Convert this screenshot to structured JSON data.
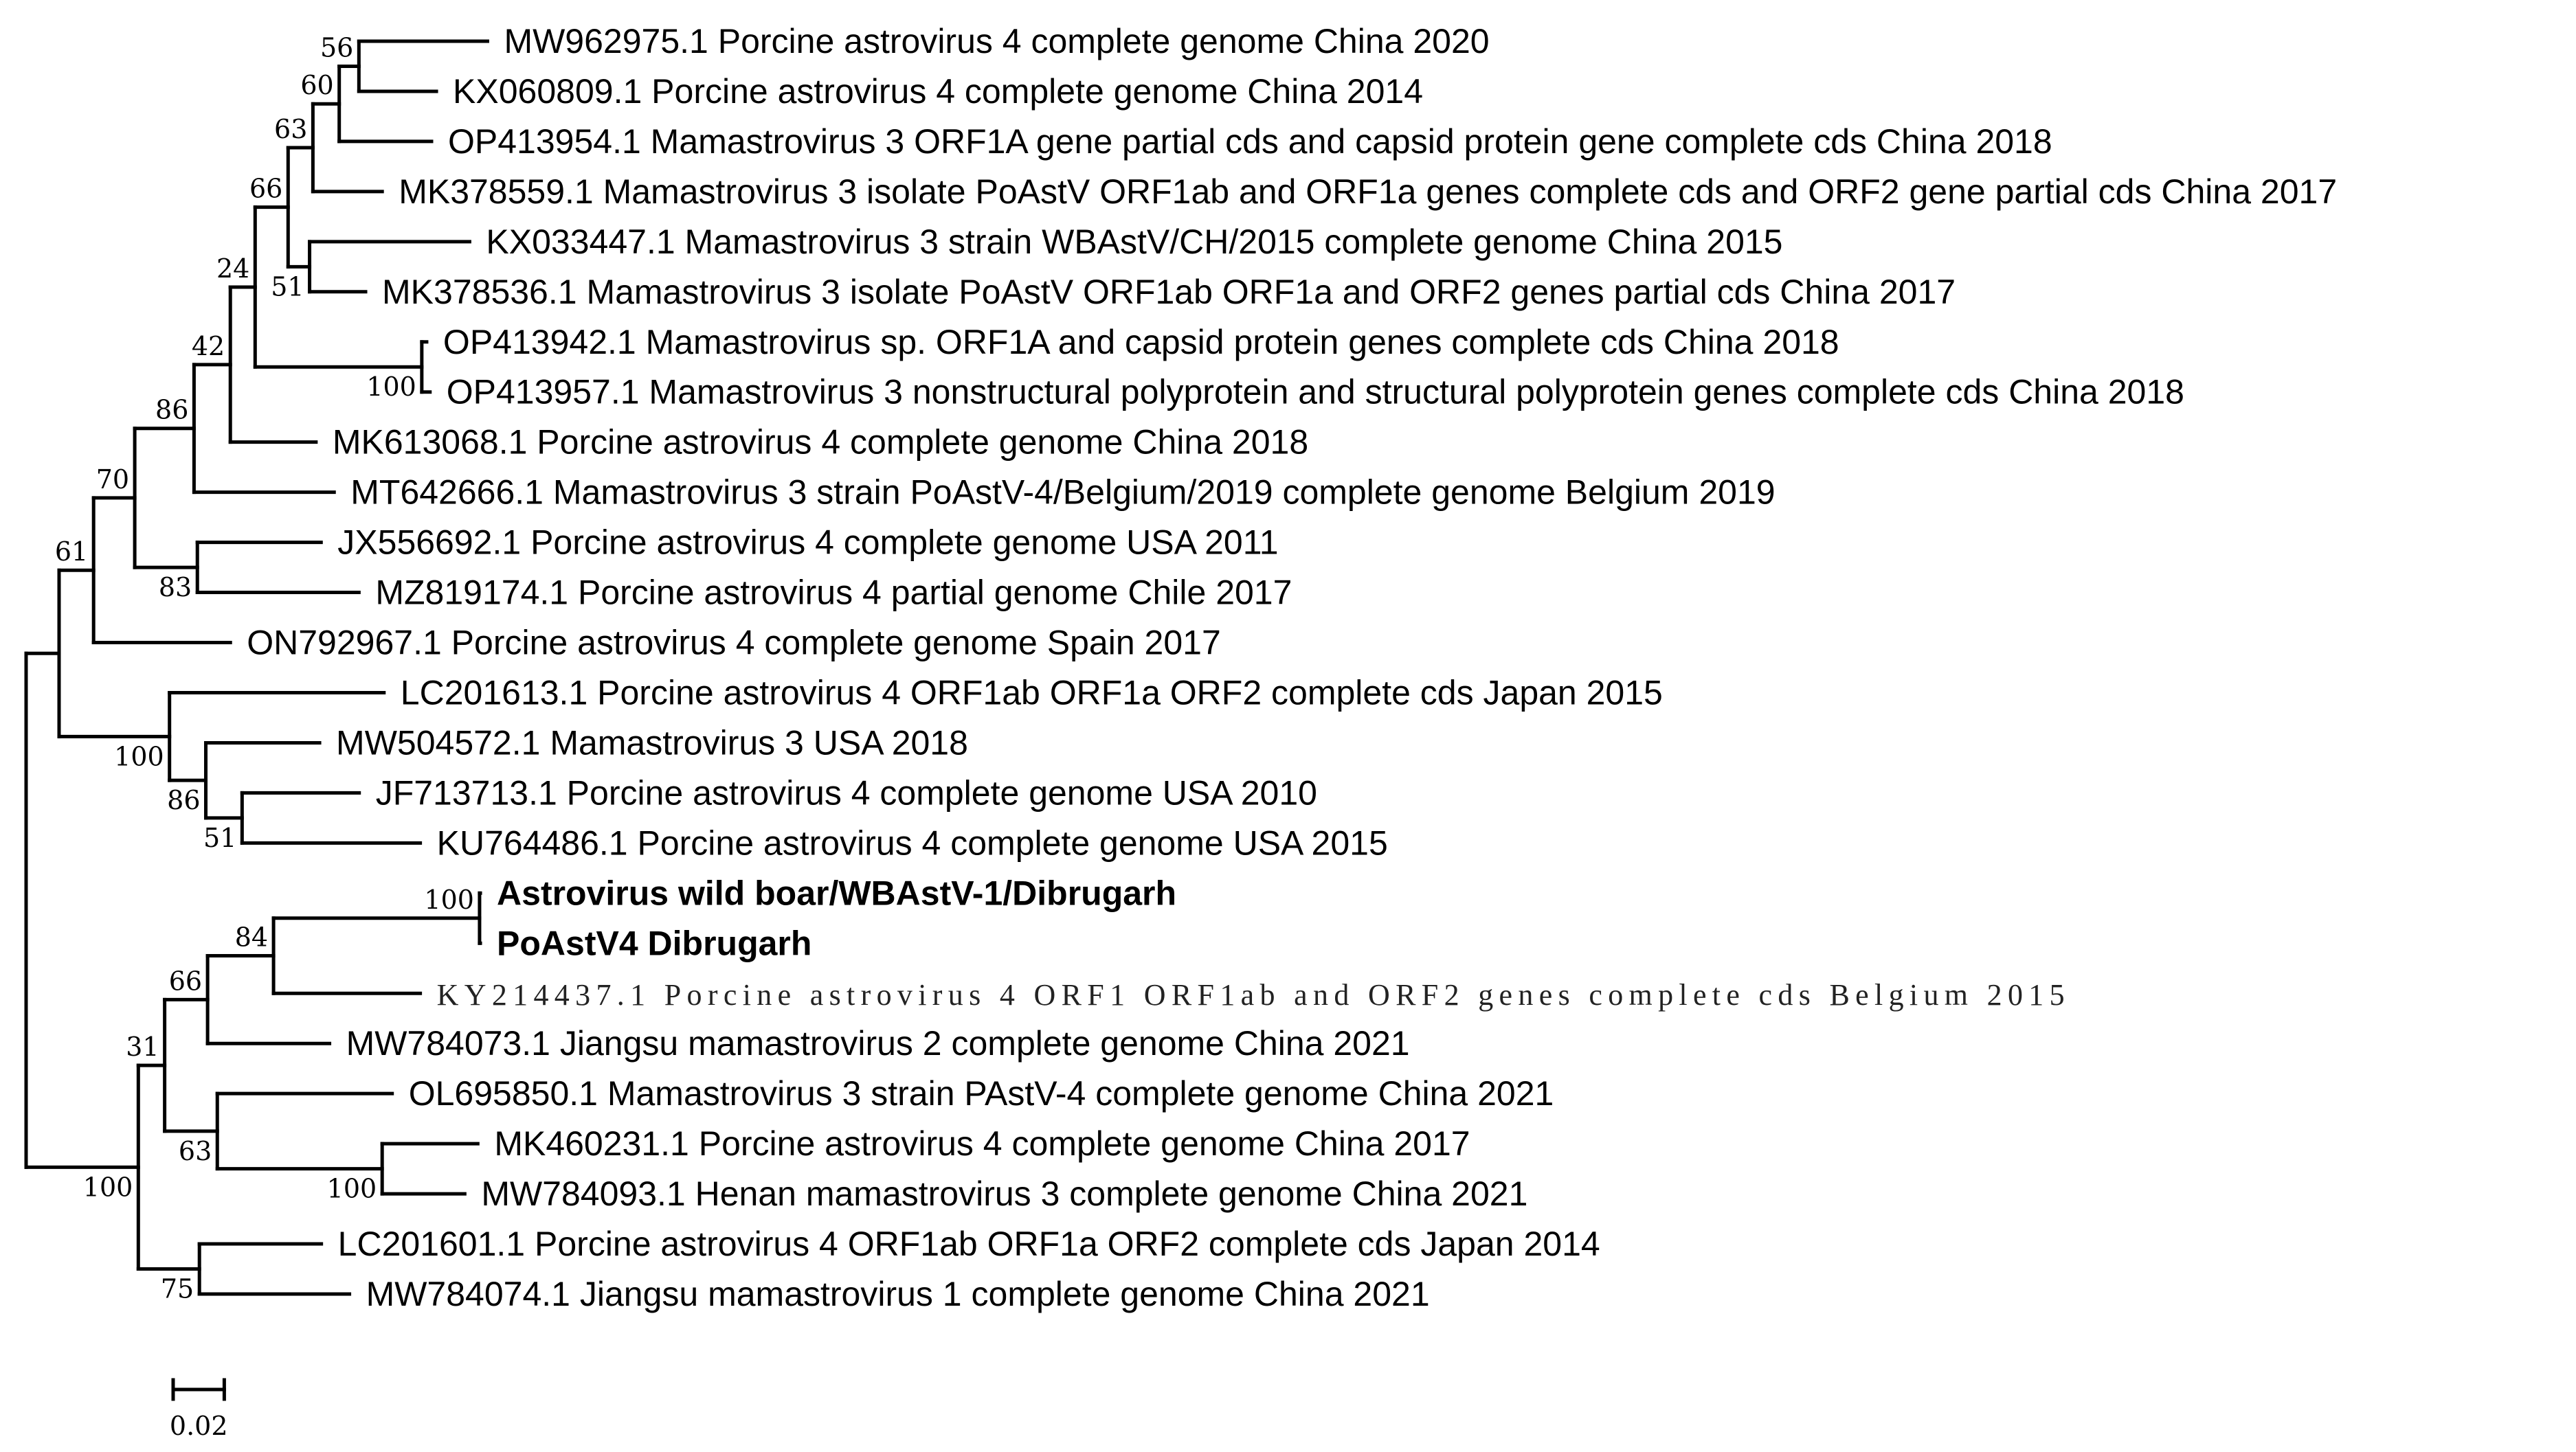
{
  "tree": {
    "id": "root",
    "bl": 0,
    "children": [
      {
        "id": "nUpper",
        "bl": 0.0129,
        "children": [
          {
            "id": "n61",
            "bl": 0.0135,
            "support": "61",
            "children": [
              {
                "id": "n70",
                "bl": 0.0161,
                "support": "70",
                "children": [
                  {
                    "id": "n86",
                    "bl": 0.0232,
                    "support": "86",
                    "children": [
                      {
                        "id": "n42",
                        "bl": 0.0142,
                        "support": "42",
                        "children": [
                          {
                            "id": "n24",
                            "bl": 0.0097,
                            "support": "24",
                            "children": [
                              {
                                "id": "n66",
                                "bl": 0.0129,
                                "support": "66",
                                "children": [
                                  {
                                    "id": "n63",
                                    "bl": 0.0097,
                                    "support": "63",
                                    "children": [
                                      {
                                        "id": "n60",
                                        "bl": 0.0103,
                                        "support": "60",
                                        "children": [
                                          {
                                            "id": "n56",
                                            "bl": 0.0077,
                                            "support": "56",
                                            "children": [
                                              {
                                                "label": "MW962975.1 Porcine astrovirus 4 complete genome China 2020",
                                                "bl": 0.0503
                                              },
                                              {
                                                "label": "KX060809.1 Porcine astrovirus 4 complete genome China 2014",
                                                "bl": 0.0303
                                              }
                                            ]
                                          },
                                          {
                                            "label": "OP413954.1 Mamastrovirus 3 ORF1A gene partial cds and capsid protein gene complete cds China 2018",
                                            "bl": 0.0361
                                          }
                                        ]
                                      },
                                      {
                                        "label": "MK378559.1 Mamastrovirus 3 isolate PoAstV ORF1ab and ORF1a genes complete cds and ORF2 gene partial cds China 2017",
                                        "bl": 0.0271
                                      }
                                    ]
                                  },
                                  {
                                    "id": "nKX",
                                    "bl": 0.0084,
                                    "support": "51",
                                    "children": [
                                      {
                                        "label": "KX033447.1 Mamastrovirus 3 strain WBAstV/CH/2015 complete genome China 2015",
                                        "bl": 0.0626
                                      },
                                      {
                                        "label": "MK378536.1 Mamastrovirus 3 isolate PoAstV ORF1ab ORF1a and ORF2 genes partial cds China 2017",
                                        "bl": 0.0219
                                      }
                                    ]
                                  }
                                ]
                              },
                              {
                                "id": "nOP",
                                "bl": 0.0652,
                                "support": "100",
                                "children": [
                                  {
                                    "label": "OP413942.1 Mamastrovirus sp. ORF1A and capsid protein genes complete cds China 2018",
                                    "bl": 0.0019
                                  },
                                  {
                                    "label": "OP413957.1 Mamastrovirus 3 nonstructural polyprotein and structural polyprotein genes complete cds China 2018",
                                    "bl": 0.0032
                                  }
                                ]
                              }
                            ]
                          },
                          {
                            "label": "MK613068.1 Porcine astrovirus 4 complete genome China 2018",
                            "bl": 0.0335
                          }
                        ]
                      },
                      {
                        "label": "MT642666.1 Mamastrovirus 3 strain PoAstV-4/Belgium/2019 complete genome Belgium 2019",
                        "bl": 0.0548
                      }
                    ]
                  },
                  {
                    "id": "nJX",
                    "bl": 0.0245,
                    "support": "83",
                    "children": [
                      {
                        "label": "JX556692.1 Porcine astrovirus 4 complete genome USA 2011",
                        "bl": 0.0484
                      },
                      {
                        "label": "MZ819174.1 Porcine astrovirus 4 partial genome Chile 2017",
                        "bl": 0.0632
                      }
                    ]
                  }
                ]
              },
              {
                "label": "ON792967.1 Porcine astrovirus 4 complete genome Spain 2017",
                "bl": 0.0535
              }
            ]
          },
          {
            "id": "n100a",
            "bl": 0.0432,
            "support": "100",
            "children": [
              {
                "label": "LC201613.1 Porcine astrovirus 4 ORF1ab ORF1a ORF2 complete cds Japan 2015",
                "bl": 0.0839
              },
              {
                "id": "n86b",
                "bl": 0.0142,
                "support": "86",
                "children": [
                  {
                    "label": "MW504572.1 Mamastrovirus 3 USA 2018",
                    "bl": 0.0445
                  },
                  {
                    "id": "n51b",
                    "bl": 0.0142,
                    "support": "51",
                    "children": [
                      {
                        "label": "JF713713.1 Porcine astrovirus 4 complete genome USA 2010",
                        "bl": 0.0458
                      },
                      {
                        "label": "KU764486.1 Porcine astrovirus 4 complete genome USA 2015",
                        "bl": 0.0697
                      }
                    ]
                  }
                ]
              }
            ]
          }
        ]
      },
      {
        "id": "n100b",
        "bl": 0.0439,
        "support": "100",
        "children": [
          {
            "id": "n31",
            "bl": 0.0103,
            "support": "31",
            "children": [
              {
                "id": "n66b",
                "bl": 0.0168,
                "support": "66",
                "children": [
                  {
                    "id": "n84",
                    "bl": 0.0258,
                    "support": "84",
                    "children": [
                      {
                        "id": "n100c",
                        "bl": 0.0806,
                        "support": "100",
                        "children": [
                          {
                            "label": "Astrovirus wild boar/WBAstV-1/Dibrugarh",
                            "bl": 0.0003,
                            "emphasis": "bold"
                          },
                          {
                            "label": "PoAstV4 Dibrugarh",
                            "bl": 0.0003,
                            "emphasis": "bold"
                          }
                        ]
                      },
                      {
                        "label": "KY214437.1 Porcine astrovirus 4 ORF1 ORF1ab and ORF2 genes complete cds Belgium 2015",
                        "bl": 0.0574,
                        "emphasis": "alternate"
                      }
                    ]
                  },
                  {
                    "label": "MW784073.1 Jiangsu mamastrovirus 2 complete genome China 2021",
                    "bl": 0.0477
                  }
                ]
              },
              {
                "id": "n63b",
                "bl": 0.0206,
                "support": "63",
                "children": [
                  {
                    "label": "OL695850.1 Mamastrovirus 3 strain PAstV-4 complete genome China 2021",
                    "bl": 0.0684
                  },
                  {
                    "id": "n100d",
                    "bl": 0.0645,
                    "support": "100",
                    "children": [
                      {
                        "label": "MK460231.1 Porcine astrovirus 4 complete genome China 2017",
                        "bl": 0.0374
                      },
                      {
                        "label": "MW784093.1 Henan mamastrovirus 3 complete genome China 2021",
                        "bl": 0.0323
                      }
                    ]
                  }
                ]
              }
            ]
          },
          {
            "id": "n75",
            "bl": 0.0239,
            "support": "75",
            "children": [
              {
                "label": "LC201601.1 Porcine astrovirus 4 ORF1ab ORF1a ORF2 complete cds Japan 2014",
                "bl": 0.0477
              },
              {
                "label": "MW784074.1 Jiangsu mamastrovirus 1 complete genome China 2021",
                "bl": 0.0587
              }
            ]
          }
        ]
      }
    ]
  },
  "scale_bar": {
    "value": 0.02,
    "label": "0.02"
  }
}
